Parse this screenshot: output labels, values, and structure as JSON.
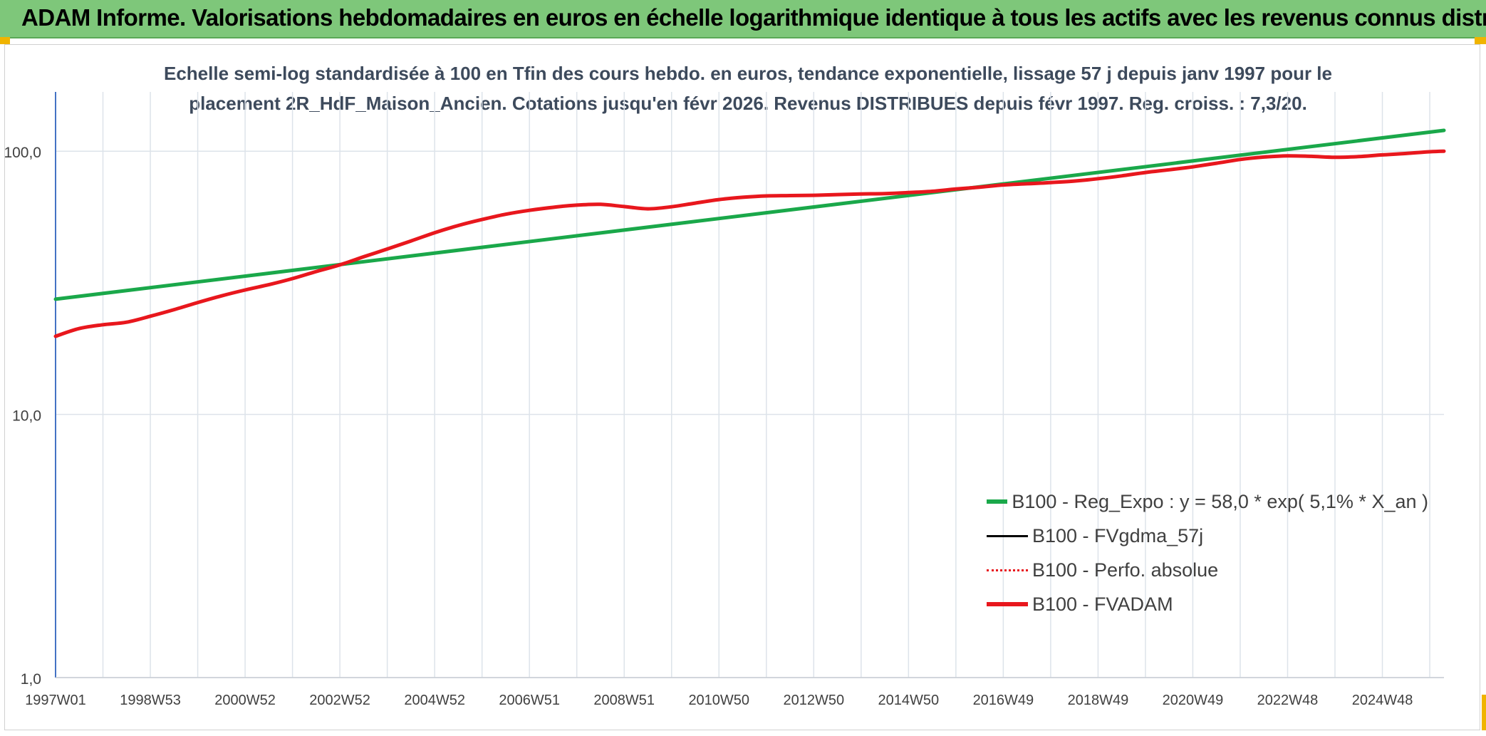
{
  "header": {
    "title": "ADAM Informe. Valorisations hebdomadaires en euros en échelle logarithmique identique à tous les actifs avec les revenus connus distribués"
  },
  "colors": {
    "header_bg": "#7ec77a",
    "trend": "#1aa84a",
    "fvadam": "#e8171d",
    "fvgdma": "#000000",
    "perfo": "#e8171d",
    "grid": "#dde3ea",
    "axis": "#4472c4"
  },
  "chart_data": {
    "type": "line",
    "subtitle_line1": "Echelle semi-log standardisée à 100 en Tfin des cours hebdo. en euros, tendance exponentielle, lissage 57 j depuis janv 1997 pour le",
    "subtitle_line2": "placement 2R_HdF_Maison_Ancien. Cotations jusqu'en févr 2026. Revenus DISTRIBUES depuis févr 1997. Reg. croiss. : 7,3/20.",
    "y_scale": "log",
    "ylim": [
      1,
      200
    ],
    "y_ticks": [
      1,
      10,
      100
    ],
    "y_tick_labels": [
      "1,0",
      "10,0",
      "100,0"
    ],
    "x_range_years": [
      1997.0,
      2026.3
    ],
    "x_tick_labels": [
      "1997W01",
      "1998W53",
      "2000W52",
      "2002W52",
      "2004W52",
      "2006W51",
      "2008W51",
      "2010W50",
      "2012W50",
      "2014W50",
      "2016W49",
      "2018W49",
      "2020W49",
      "2022W48",
      "2024W48"
    ],
    "x_tick_years": [
      1997.0,
      1999.0,
      2001.0,
      2003.0,
      2005.0,
      2007.0,
      2009.0,
      2011.0,
      2013.0,
      2015.0,
      2017.0,
      2019.0,
      2021.0,
      2023.0,
      2025.0
    ],
    "grid": true,
    "legend_position": "bottom-right",
    "series": [
      {
        "name": "B100 - Reg_Expo : y = 58,0 * exp( 5,1% *  X_an )",
        "style": "solid-thick",
        "color": "#1aa84a",
        "x": [
          1997.0,
          2026.3
        ],
        "y": [
          27.4,
          120.0
        ]
      },
      {
        "name": "B100 - FVgdma_57j",
        "style": "solid-thin",
        "color": "#000000",
        "x": [],
        "y": []
      },
      {
        "name": "B100 - Perfo. absolue",
        "style": "dotted",
        "color": "#e8171d",
        "x": [],
        "y": []
      },
      {
        "name": "B100 - FVADAM",
        "style": "solid-thick",
        "color": "#e8171d",
        "x": [
          1997.0,
          1997.5,
          1998.0,
          1998.5,
          1999.0,
          1999.5,
          2000.0,
          2000.5,
          2001.0,
          2001.5,
          2002.0,
          2002.5,
          2003.0,
          2003.5,
          2004.0,
          2004.5,
          2005.0,
          2005.5,
          2006.0,
          2006.5,
          2007.0,
          2007.5,
          2008.0,
          2008.5,
          2009.0,
          2009.5,
          2010.0,
          2010.5,
          2011.0,
          2011.5,
          2012.0,
          2012.5,
          2013.0,
          2013.5,
          2014.0,
          2014.5,
          2015.0,
          2015.5,
          2016.0,
          2016.5,
          2017.0,
          2017.5,
          2018.0,
          2018.5,
          2019.0,
          2019.5,
          2020.0,
          2020.5,
          2021.0,
          2021.5,
          2022.0,
          2022.5,
          2023.0,
          2023.5,
          2024.0,
          2024.5,
          2025.0,
          2025.5,
          2026.0,
          2026.3
        ],
        "y": [
          19.8,
          21.2,
          21.9,
          22.4,
          23.6,
          25.0,
          26.6,
          28.2,
          29.7,
          31.1,
          32.8,
          34.9,
          37.0,
          39.7,
          42.5,
          45.6,
          49.0,
          52.2,
          55.0,
          57.6,
          59.6,
          61.2,
          62.4,
          62.8,
          61.6,
          60.4,
          61.5,
          63.5,
          65.5,
          66.8,
          67.6,
          67.8,
          68.0,
          68.4,
          68.8,
          69.0,
          69.6,
          70.4,
          71.8,
          73.0,
          74.4,
          75.2,
          76.0,
          77.0,
          78.6,
          80.6,
          83.0,
          85.0,
          87.2,
          90.0,
          93.0,
          95.0,
          96.0,
          95.6,
          94.8,
          95.4,
          96.8,
          98.0,
          99.5,
          100.0
        ]
      }
    ]
  }
}
